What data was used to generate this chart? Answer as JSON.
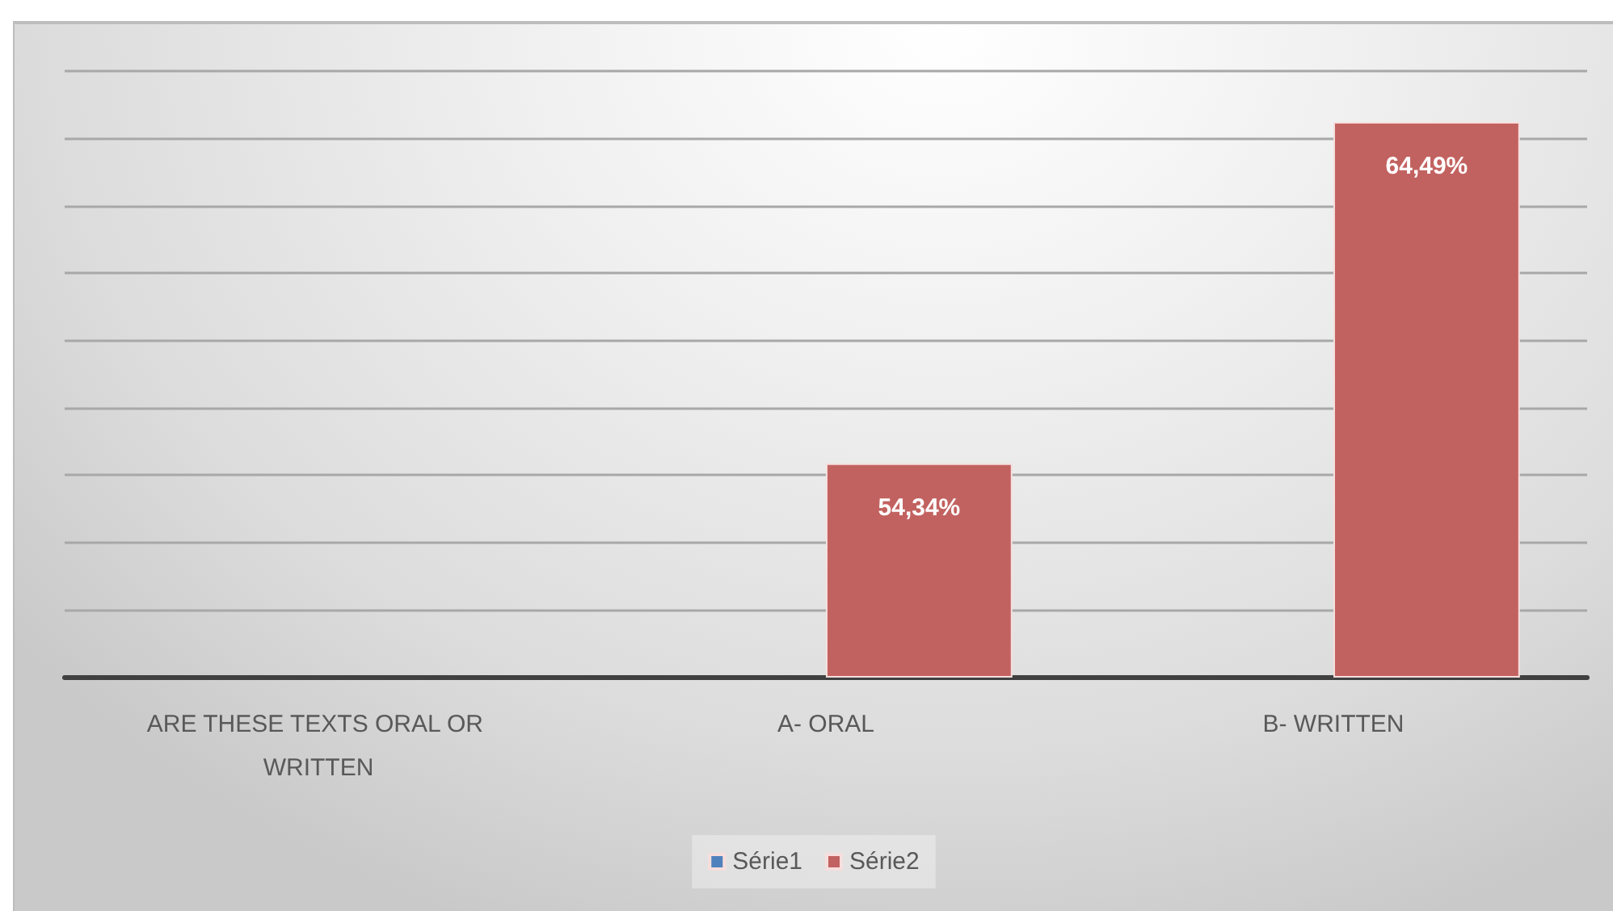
{
  "chart_data": {
    "type": "bar",
    "categories": [
      "ARE THESE TEXTS ORAL OR WRITTEN",
      "A- ORAL",
      "B- WRITTEN"
    ],
    "series": [
      {
        "name": "Série1",
        "color": "#4f81bd",
        "values": [
          null,
          null,
          null
        ]
      },
      {
        "name": "Série2",
        "color": "#c26260",
        "values": [
          null,
          54.34,
          64.49
        ],
        "value_labels": [
          null,
          "54,34%",
          "64,49%"
        ]
      }
    ],
    "ylim": [
      48,
      66
    ],
    "yticks": [
      {
        "value": 48,
        "label": null
      },
      {
        "value": 50,
        "label": null
      },
      {
        "value": 52,
        "label": null
      },
      {
        "value": 54,
        "label": null
      },
      {
        "value": 56,
        "label": null
      },
      {
        "value": 58,
        "label": null
      },
      {
        "value": 60,
        "label": null
      },
      {
        "value": 62,
        "label": null
      },
      {
        "value": 64,
        "label": null
      },
      {
        "value": 66,
        "label": null
      }
    ],
    "tick_labels": "x",
    "grid": "y",
    "legend": "bottom"
  }
}
